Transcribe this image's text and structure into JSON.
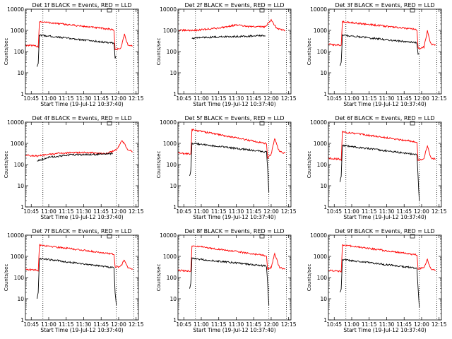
{
  "figure": {
    "background": "#ffffff",
    "colors": {
      "events": "#000000",
      "lld": "#ff0000",
      "axes": "#000000"
    }
  },
  "chart_data": [
    {
      "type": "line",
      "title": "Det 1f BLACK = Events, RED = LLD",
      "xlabel": "Start Time (19-Jul-12 10:37:40)",
      "ylabel": "Counts/sec",
      "xlim": [
        "10:40",
        "12:17"
      ],
      "ylim": [
        1,
        10000
      ],
      "yscale": "log",
      "xticks": [
        "10:45",
        "11:00",
        "11:15",
        "11:30",
        "11:45",
        "12:00",
        "12:15"
      ],
      "yticks": [
        "1",
        "10",
        "100",
        "1000",
        "10000"
      ],
      "vlines": [
        "10:55",
        "11:58",
        "12:13"
      ],
      "series": [
        {
          "name": "LLD",
          "color": "#ff0000",
          "points": [
            [
              "10:40",
              200
            ],
            [
              "10:50",
              180
            ],
            [
              "10:51",
              170
            ],
            [
              "10:52",
              2600
            ],
            [
              "11:55",
              1100
            ],
            [
              "11:56",
              1000
            ],
            [
              "11:57",
              120
            ],
            [
              "12:02",
              150
            ],
            [
              "12:05",
              650
            ],
            [
              "12:08",
              200
            ],
            [
              "12:12",
              180
            ]
          ]
        },
        {
          "name": "Events",
          "color": "#000000",
          "points": [
            [
              "10:50",
              20
            ],
            [
              "10:51",
              25
            ],
            [
              "10:52",
              600
            ],
            [
              "11:55",
              250
            ],
            [
              "11:56",
              240
            ],
            [
              "11:57",
              50
            ],
            [
              "11:58",
              60
            ]
          ]
        }
      ]
    },
    {
      "type": "line",
      "title": "Det 2f BLACK = Events, RED = LLD",
      "xlabel": "Start Time (19-Jul-12 10:37:40)",
      "ylabel": "Counts/sec",
      "xlim": [
        "10:40",
        "12:17"
      ],
      "ylim": [
        1,
        10000
      ],
      "yscale": "log",
      "xticks": [
        "10:45",
        "11:00",
        "11:15",
        "11:30",
        "11:45",
        "12:00",
        "12:15"
      ],
      "yticks": [
        "1",
        "10",
        "100",
        "1000",
        "10000"
      ],
      "vlines": [
        "10:55",
        "11:58",
        "12:13"
      ],
      "series": [
        {
          "name": "LLD",
          "color": "#ff0000",
          "points": [
            [
              "10:40",
              1000
            ],
            [
              "10:55",
              1000
            ],
            [
              "11:15",
              1300
            ],
            [
              "11:30",
              1800
            ],
            [
              "11:40",
              1500
            ],
            [
              "11:55",
              1500
            ],
            [
              "12:00",
              3200
            ],
            [
              "12:05",
              1200
            ],
            [
              "12:12",
              1000
            ]
          ]
        },
        {
          "name": "Events",
          "color": "#000000",
          "points": [
            [
              "10:52",
              420
            ],
            [
              "11:00",
              460
            ],
            [
              "11:30",
              520
            ],
            [
              "11:55",
              560
            ]
          ]
        }
      ]
    },
    {
      "type": "line",
      "title": "Det 3f BLACK = Events, RED = LLD",
      "xlabel": "Start Time (19-Jul-12 10:37:40)",
      "ylabel": "Counts/sec",
      "xlim": [
        "10:40",
        "12:17"
      ],
      "ylim": [
        1,
        10000
      ],
      "yscale": "log",
      "xticks": [
        "10:45",
        "11:00",
        "11:15",
        "11:30",
        "11:45",
        "12:00",
        "12:15"
      ],
      "yticks": [
        "1",
        "10",
        "100",
        "1000",
        "10000"
      ],
      "vlines": [
        "10:55",
        "11:58",
        "12:13"
      ],
      "series": [
        {
          "name": "LLD",
          "color": "#ff0000",
          "points": [
            [
              "10:40",
              220
            ],
            [
              "10:50",
              200
            ],
            [
              "10:51",
              180
            ],
            [
              "10:52",
              2600
            ],
            [
              "11:55",
              1100
            ],
            [
              "11:56",
              1000
            ],
            [
              "11:57",
              140
            ],
            [
              "12:02",
              160
            ],
            [
              "12:05",
              1000
            ],
            [
              "12:08",
              220
            ],
            [
              "12:12",
              200
            ]
          ]
        },
        {
          "name": "Events",
          "color": "#000000",
          "points": [
            [
              "10:50",
              22
            ],
            [
              "10:51",
              30
            ],
            [
              "10:52",
              600
            ],
            [
              "11:55",
              260
            ],
            [
              "11:56",
              240
            ],
            [
              "11:57",
              70
            ],
            [
              "11:58",
              80
            ]
          ]
        }
      ]
    },
    {
      "type": "line",
      "title": "Det 4f BLACK = Events, RED = LLD",
      "xlabel": "Start Time (19-Jul-12 10:37:40)",
      "ylabel": "Counts/sec",
      "xlim": [
        "10:40",
        "12:17"
      ],
      "ylim": [
        1,
        10000
      ],
      "yscale": "log",
      "xticks": [
        "10:45",
        "11:00",
        "11:15",
        "11:30",
        "11:45",
        "12:00",
        "12:15"
      ],
      "yticks": [
        "1",
        "10",
        "100",
        "1000",
        "10000"
      ],
      "vlines": [
        "10:55",
        "11:58",
        "12:13"
      ],
      "series": [
        {
          "name": "LLD",
          "color": "#ff0000",
          "points": [
            [
              "10:40",
              280
            ],
            [
              "10:50",
              250
            ],
            [
              "11:10",
              350
            ],
            [
              "11:30",
              370
            ],
            [
              "11:50",
              330
            ],
            [
              "11:58",
              500
            ],
            [
              "12:00",
              700
            ],
            [
              "12:03",
              1400
            ],
            [
              "12:08",
              500
            ],
            [
              "12:12",
              400
            ]
          ]
        },
        {
          "name": "Events",
          "color": "#000000",
          "points": [
            [
              "10:50",
              150
            ],
            [
              "11:00",
              220
            ],
            [
              "11:20",
              290
            ],
            [
              "11:40",
              300
            ],
            [
              "11:55",
              330
            ]
          ]
        }
      ]
    },
    {
      "type": "line",
      "title": "Det 5f BLACK = Events, RED = LLD",
      "xlabel": "Start Time (19-Jul-12 10:37:40)",
      "ylabel": "Counts/sec",
      "xlim": [
        "10:40",
        "12:17"
      ],
      "ylim": [
        1,
        10000
      ],
      "yscale": "log",
      "xticks": [
        "10:45",
        "11:00",
        "11:15",
        "11:30",
        "11:45",
        "12:00",
        "12:15"
      ],
      "yticks": [
        "1",
        "10",
        "100",
        "1000",
        "10000"
      ],
      "vlines": [
        "10:55",
        "11:58",
        "12:13"
      ],
      "series": [
        {
          "name": "LLD",
          "color": "#ff0000",
          "points": [
            [
              "10:40",
              350
            ],
            [
              "10:50",
              320
            ],
            [
              "10:51",
              300
            ],
            [
              "10:52",
              4500
            ],
            [
              "11:55",
              1000
            ],
            [
              "11:56",
              950
            ],
            [
              "11:57",
              200
            ],
            [
              "12:00",
              300
            ],
            [
              "12:03",
              1800
            ],
            [
              "12:07",
              400
            ],
            [
              "12:12",
              350
            ]
          ]
        },
        {
          "name": "Events",
          "color": "#000000",
          "points": [
            [
              "10:50",
              30
            ],
            [
              "10:51",
              50
            ],
            [
              "10:52",
              1000
            ],
            [
              "11:55",
              400
            ],
            [
              "11:56",
              380
            ],
            [
              "11:57",
              60
            ],
            [
              "11:58",
              5
            ]
          ]
        }
      ]
    },
    {
      "type": "line",
      "title": "Det 6f BLACK = Events, RED = LLD",
      "xlabel": "Start Time (19-Jul-12 10:37:40)",
      "ylabel": "Counts/sec",
      "xlim": [
        "10:40",
        "12:17"
      ],
      "ylim": [
        1,
        10000
      ],
      "yscale": "log",
      "xticks": [
        "10:45",
        "11:00",
        "11:15",
        "11:30",
        "11:45",
        "12:00",
        "12:15"
      ],
      "yticks": [
        "1",
        "10",
        "100",
        "1000",
        "10000"
      ],
      "vlines": [
        "10:55",
        "11:58",
        "12:13"
      ],
      "series": [
        {
          "name": "LLD",
          "color": "#ff0000",
          "points": [
            [
              "10:40",
              200
            ],
            [
              "10:50",
              180
            ],
            [
              "10:51",
              170
            ],
            [
              "10:52",
              3500
            ],
            [
              "11:55",
              1200
            ],
            [
              "11:56",
              1100
            ],
            [
              "11:57",
              150
            ],
            [
              "12:02",
              200
            ],
            [
              "12:05",
              800
            ],
            [
              "12:08",
              200
            ],
            [
              "12:12",
              180
            ]
          ]
        },
        {
          "name": "Events",
          "color": "#000000",
          "points": [
            [
              "10:50",
              15
            ],
            [
              "10:51",
              30
            ],
            [
              "10:52",
              800
            ],
            [
              "11:55",
              300
            ],
            [
              "11:56",
              280
            ],
            [
              "11:57",
              25
            ],
            [
              "11:58",
              2
            ]
          ]
        }
      ]
    },
    {
      "type": "line",
      "title": "Det 7f BLACK = Events, RED = LLD",
      "xlabel": "Start Time (19-Jul-12 10:37:40)",
      "ylabel": "Counts/sec",
      "xlim": [
        "10:40",
        "12:17"
      ],
      "ylim": [
        1,
        10000
      ],
      "yscale": "log",
      "xticks": [
        "10:45",
        "11:00",
        "11:15",
        "11:30",
        "11:45",
        "12:00",
        "12:15"
      ],
      "yticks": [
        "1",
        "10",
        "100",
        "1000",
        "10000"
      ],
      "vlines": [
        "10:55",
        "11:58",
        "12:13"
      ],
      "series": [
        {
          "name": "LLD",
          "color": "#ff0000",
          "points": [
            [
              "10:40",
              250
            ],
            [
              "10:50",
              220
            ],
            [
              "10:51",
              200
            ],
            [
              "10:52",
              3500
            ],
            [
              "11:55",
              1300
            ],
            [
              "11:56",
              1200
            ],
            [
              "11:57",
              300
            ],
            [
              "12:02",
              350
            ],
            [
              "12:05",
              700
            ],
            [
              "12:08",
              300
            ],
            [
              "12:12",
              260
            ]
          ]
        },
        {
          "name": "Events",
          "color": "#000000",
          "points": [
            [
              "10:50",
              10
            ],
            [
              "10:51",
              20
            ],
            [
              "10:52",
              800
            ],
            [
              "11:55",
              300
            ],
            [
              "11:56",
              280
            ],
            [
              "11:57",
              20
            ],
            [
              "11:58",
              5
            ]
          ]
        }
      ]
    },
    {
      "type": "line",
      "title": "Det 8f BLACK = Events, RED = LLD",
      "xlabel": "Start Time (19-Jul-12 10:37:40)",
      "ylabel": "Counts/sec",
      "xlim": [
        "10:40",
        "12:17"
      ],
      "ylim": [
        1,
        10000
      ],
      "yscale": "log",
      "xticks": [
        "10:45",
        "11:00",
        "11:15",
        "11:30",
        "11:45",
        "12:00",
        "12:15"
      ],
      "yticks": [
        "1",
        "10",
        "100",
        "1000",
        "10000"
      ],
      "vlines": [
        "10:55",
        "11:58",
        "12:13"
      ],
      "series": [
        {
          "name": "LLD",
          "color": "#ff0000",
          "points": [
            [
              "10:40",
              220
            ],
            [
              "10:50",
              200
            ],
            [
              "10:51",
              190
            ],
            [
              "10:52",
              3200
            ],
            [
              "11:55",
              1100
            ],
            [
              "11:56",
              1000
            ],
            [
              "11:57",
              250
            ],
            [
              "12:00",
              300
            ],
            [
              "12:03",
              1400
            ],
            [
              "12:07",
              300
            ],
            [
              "12:12",
              250
            ]
          ]
        },
        {
          "name": "Events",
          "color": "#000000",
          "points": [
            [
              "10:50",
              30
            ],
            [
              "10:51",
              50
            ],
            [
              "10:52",
              800
            ],
            [
              "11:55",
              350
            ],
            [
              "11:56",
              330
            ],
            [
              "11:57",
              50
            ],
            [
              "11:58",
              5
            ]
          ]
        }
      ]
    },
    {
      "type": "line",
      "title": "Det 9f BLACK = Events, RED = LLD",
      "xlabel": "Start Time (19-Jul-12 10:37:40)",
      "ylabel": "Counts/sec",
      "xlim": [
        "10:40",
        "12:17"
      ],
      "ylim": [
        1,
        10000
      ],
      "yscale": "log",
      "xticks": [
        "10:45",
        "11:00",
        "11:15",
        "11:30",
        "11:45",
        "12:00",
        "12:15"
      ],
      "yticks": [
        "1",
        "10",
        "100",
        "1000",
        "10000"
      ],
      "vlines": [
        "10:55",
        "11:58",
        "12:13"
      ],
      "series": [
        {
          "name": "LLD",
          "color": "#ff0000",
          "points": [
            [
              "10:40",
              220
            ],
            [
              "10:50",
              200
            ],
            [
              "10:51",
              190
            ],
            [
              "10:52",
              3500
            ],
            [
              "11:55",
              1200
            ],
            [
              "11:56",
              1100
            ],
            [
              "11:57",
              250
            ],
            [
              "12:02",
              300
            ],
            [
              "12:05",
              700
            ],
            [
              "12:08",
              250
            ],
            [
              "12:12",
              220
            ]
          ]
        },
        {
          "name": "Events",
          "color": "#000000",
          "points": [
            [
              "10:50",
              20
            ],
            [
              "10:51",
              30
            ],
            [
              "10:52",
              700
            ],
            [
              "11:55",
              280
            ],
            [
              "11:56",
              260
            ],
            [
              "11:57",
              30
            ],
            [
              "11:58",
              4
            ]
          ]
        }
      ]
    }
  ]
}
